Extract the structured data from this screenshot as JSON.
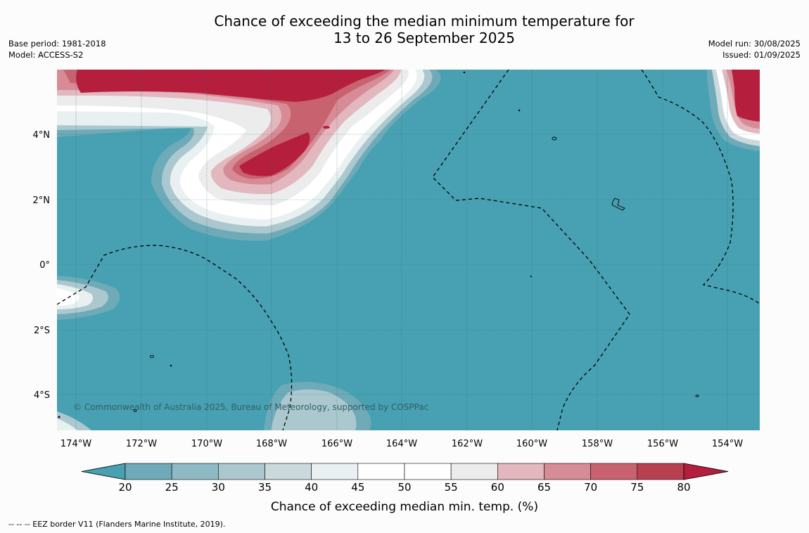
{
  "title_line1": "Chance of exceeding the median minimum temperature for",
  "title_line2": "13 to 26 September 2025",
  "base_period": "Base period: 1981-2018",
  "model": "Model: ACCESS-S2",
  "model_run": "Model run: 30/08/2025",
  "issued": "Issued: 01/09/2025",
  "copyright": "© Commonwealth of Australia 2025, Bureau of Meteorology, supported by COSPPac",
  "lon_labels": [
    "174°W",
    "172°W",
    "170°W",
    "168°W",
    "166°W",
    "164°W",
    "162°W",
    "160°W",
    "158°W",
    "156°W",
    "154°W"
  ],
  "lat_labels": [
    "4°N",
    "2°N",
    "0°",
    "2°S",
    "4°S"
  ],
  "colorbar": {
    "ticks": [
      "20",
      "25",
      "30",
      "35",
      "40",
      "45",
      "50",
      "55",
      "60",
      "65",
      "70",
      "75",
      "80"
    ],
    "colors": [
      "#6eaab8",
      "#8dbac5",
      "#abc8cf",
      "#cbd8dc",
      "#e9f0f1",
      "#ffffff",
      "#ffffff",
      "#ececec",
      "#e2b8be",
      "#d68b96",
      "#c8626f",
      "#b8404f"
    ],
    "under_color": "#48a1b2",
    "over_color": "#b51e3c",
    "label": "Chance of exceeding median min. temp. (%)"
  },
  "footer_note": "--  --  -- EEZ border V11 (Flanders Marine Institute, 2019)."
}
